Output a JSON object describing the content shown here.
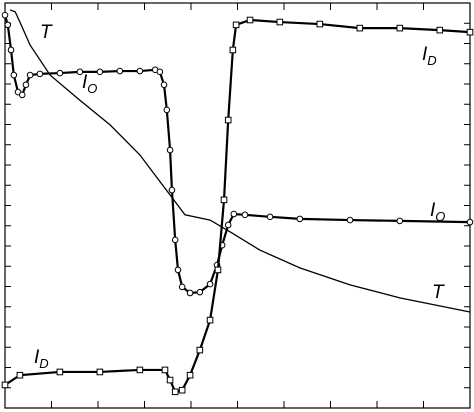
{
  "chart_data": {
    "type": "line",
    "xlim": [
      0,
      100
    ],
    "ylim": [
      0,
      100
    ],
    "xticks": [
      10,
      20,
      30,
      40,
      50,
      60,
      70,
      80,
      90
    ],
    "yticks": [
      5,
      10,
      15,
      20,
      25,
      30,
      35,
      40,
      45,
      50,
      55,
      60,
      65,
      70,
      75,
      80,
      85,
      90,
      95
    ],
    "series": [
      {
        "name": "T",
        "color": "#000000",
        "marker": "none",
        "x": [
          1.1,
          2.2,
          3.2,
          5.4,
          9.7,
          16.1,
          22.6,
          29.0,
          35.5,
          38.7,
          44.1,
          48.4,
          54.8,
          63.4,
          74.2,
          84.9,
          100
        ],
        "values": [
          98.3,
          97.8,
          95.3,
          89.6,
          82.2,
          76.0,
          69.9,
          62.5,
          52.6,
          47.7,
          46.4,
          43.5,
          39.0,
          34.6,
          30.4,
          27.2,
          23.7
        ]
      },
      {
        "name": "I_O",
        "color": "#000000",
        "marker": "circle",
        "x": [
          0,
          0.6,
          1.3,
          1.9,
          2.8,
          3.7,
          4.5,
          5.4,
          7.5,
          11.8,
          16.1,
          20.4,
          24.7,
          29.0,
          32.3,
          33.3,
          34.2,
          34.8,
          35.5,
          35.9,
          36.6,
          37.2,
          38.1,
          39.8,
          41.9,
          44.1,
          45.6,
          46.7,
          48.0,
          49.2,
          51.6,
          57.0,
          63.4,
          74.2,
          84.9,
          100
        ],
        "values": [
          97.0,
          94.6,
          88.4,
          82.2,
          78.0,
          77.3,
          79.8,
          82.2,
          82.5,
          82.7,
          83.0,
          83.0,
          83.2,
          83.2,
          83.5,
          83.0,
          79.8,
          73.6,
          63.7,
          53.8,
          41.5,
          34.1,
          29.9,
          28.4,
          28.6,
          30.6,
          35.3,
          40.2,
          45.2,
          47.9,
          47.7,
          47.2,
          46.7,
          46.4,
          46.2,
          45.9
        ]
      },
      {
        "name": "I_D",
        "color": "#000000",
        "marker": "square",
        "x": [
          0,
          3.2,
          11.8,
          20.4,
          29.0,
          34.4,
          35.5,
          36.6,
          38.1,
          39.8,
          41.9,
          44.1,
          45.8,
          47.1,
          48.0,
          49.0,
          49.7,
          52.7,
          59.1,
          67.7,
          76.3,
          84.9,
          93.5,
          100
        ],
        "values": [
          5.7,
          8.1,
          8.9,
          8.9,
          9.4,
          9.4,
          6.9,
          4.0,
          4.4,
          8.1,
          14.3,
          21.7,
          34.1,
          51.4,
          71.1,
          88.4,
          94.6,
          95.8,
          95.3,
          94.8,
          93.8,
          93.8,
          93.3,
          92.8
        ]
      }
    ],
    "annotations": [
      {
        "text": "T"
      },
      {
        "text": "I",
        "sub": "O"
      },
      {
        "text": "I",
        "sub": "D"
      },
      {
        "text": "I",
        "sub": "O"
      },
      {
        "text": "T"
      },
      {
        "text": "I",
        "sub": "D"
      }
    ]
  }
}
